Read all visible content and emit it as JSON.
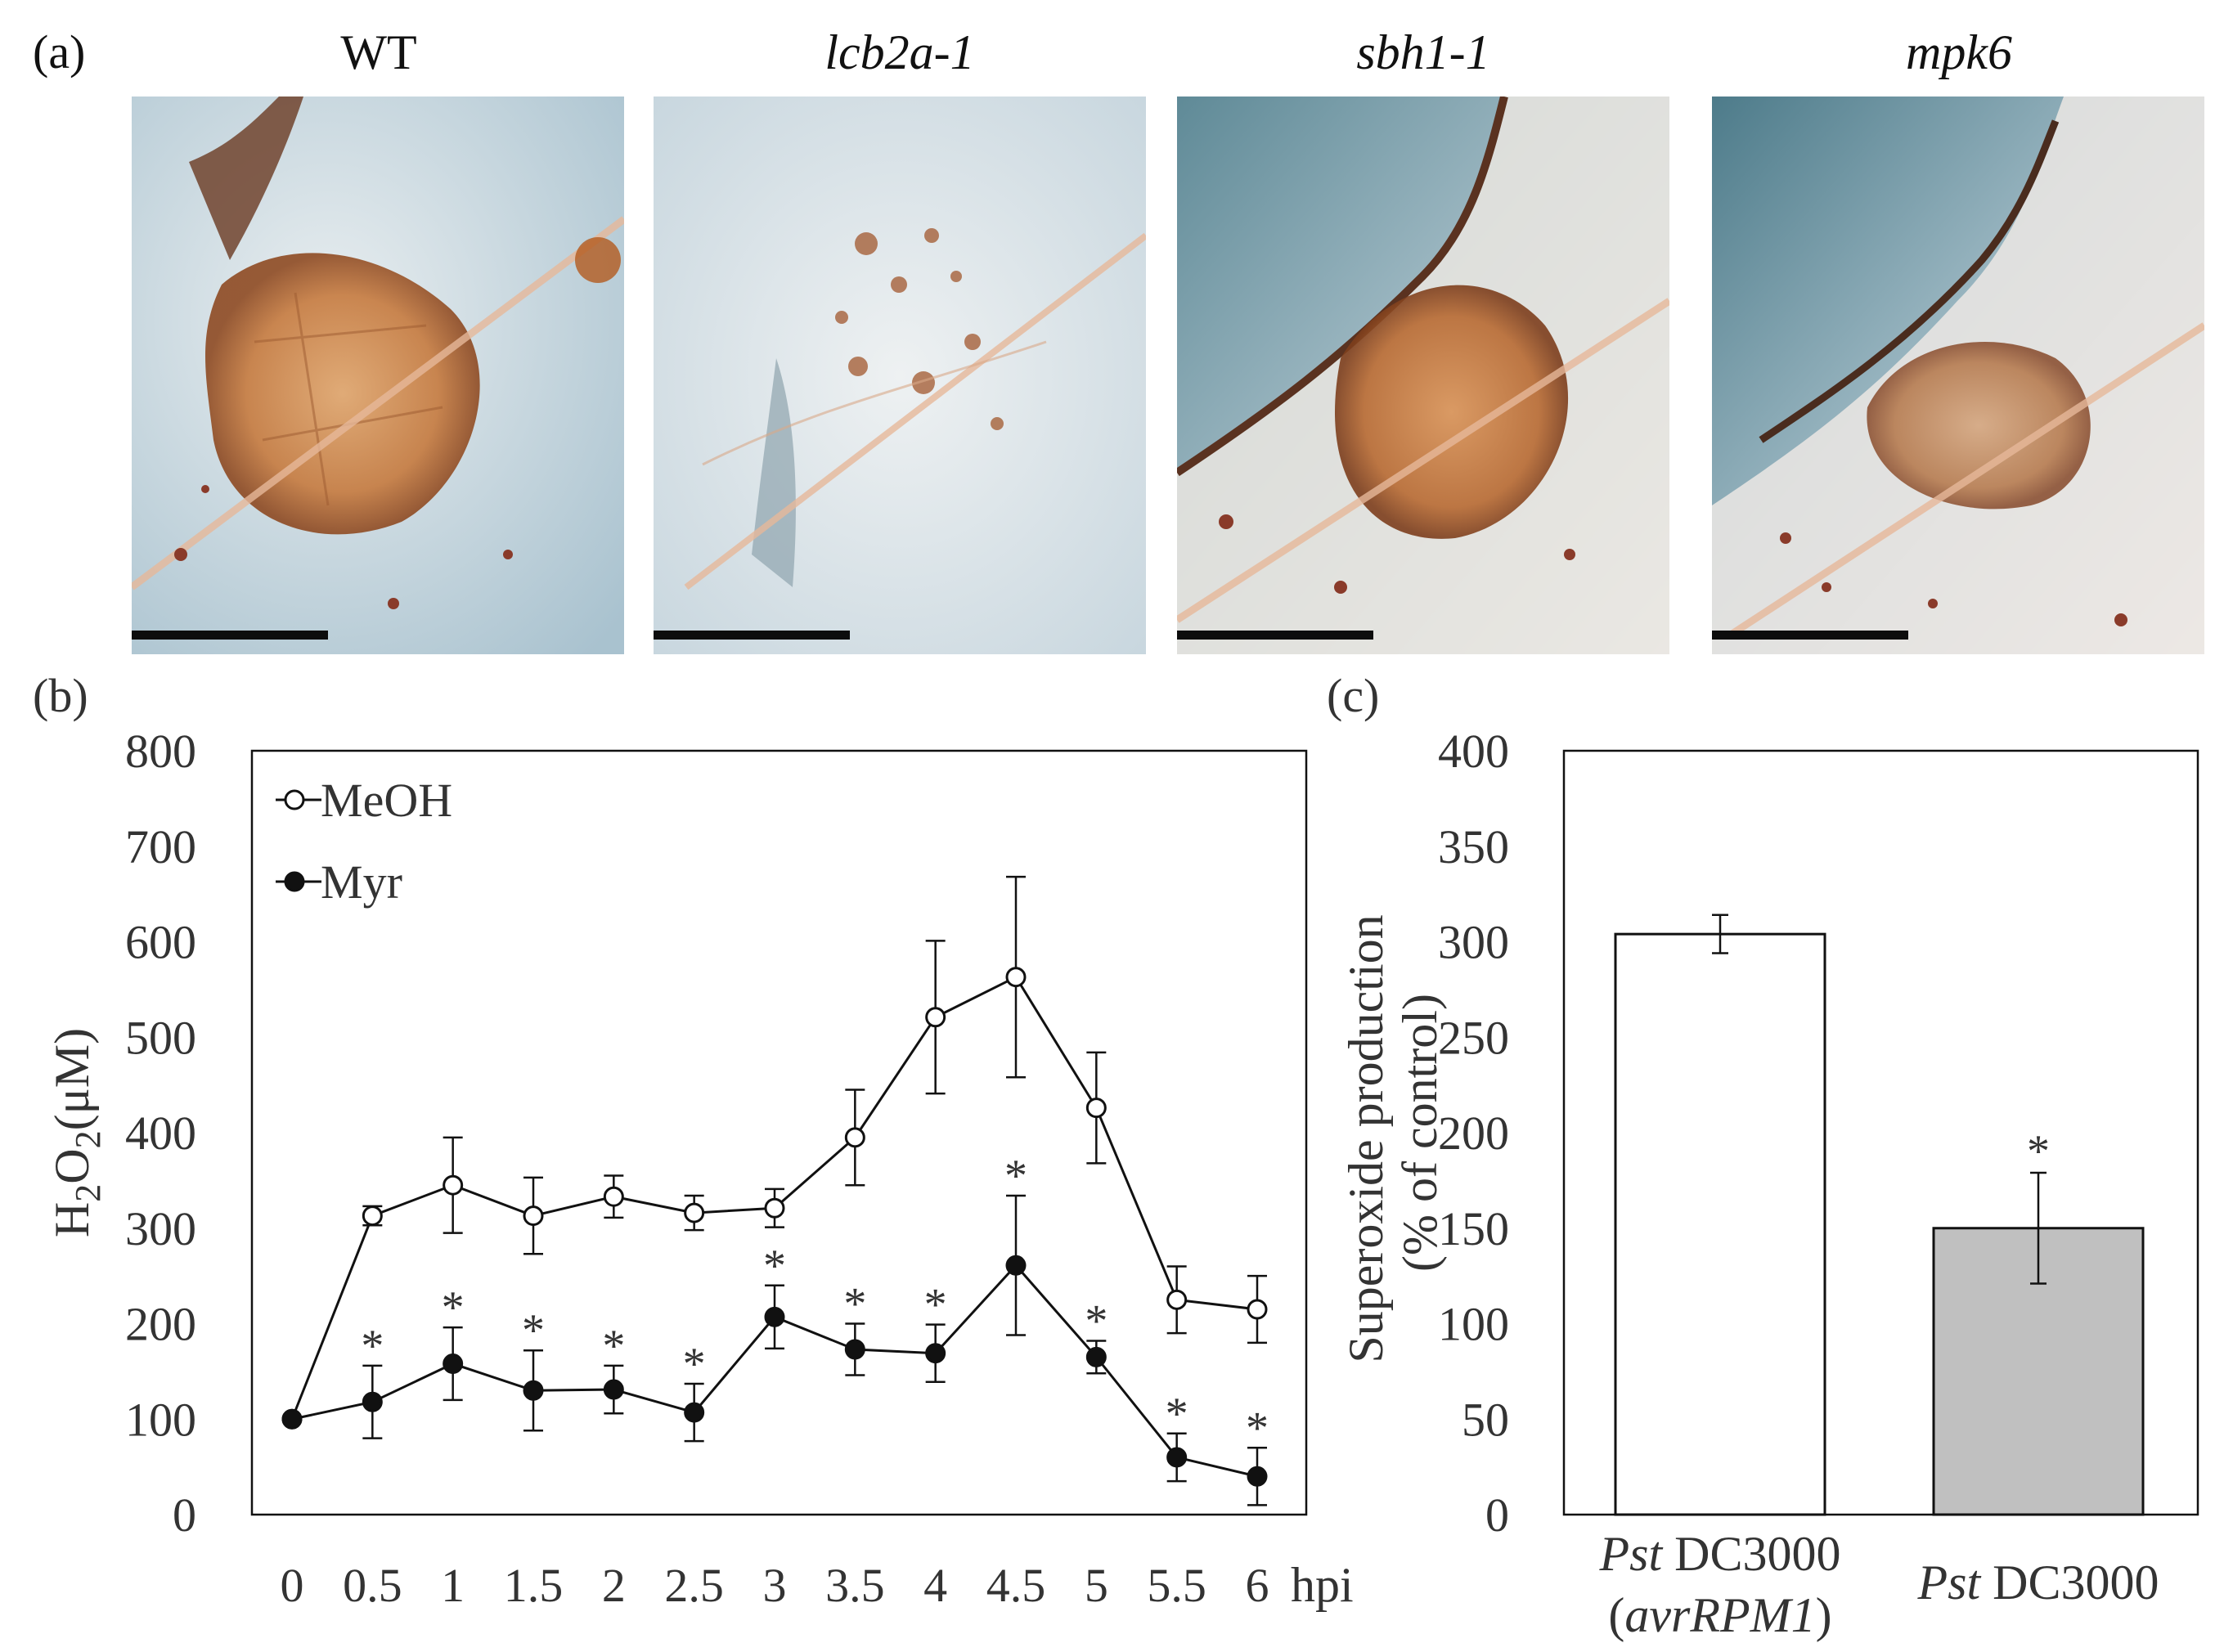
{
  "panel_a": {
    "label": "(a)",
    "photos": [
      {
        "title": "WT",
        "italic": false
      },
      {
        "title": "lcb2a-1",
        "italic": true
      },
      {
        "title": "sbh1-1",
        "italic": true
      },
      {
        "title": "mpk6",
        "italic": true
      }
    ]
  },
  "chart_data": [
    {
      "panel": "(b)",
      "type": "line",
      "xlabel": "hpi",
      "ylabel": "H2O2(μM)",
      "ylabel_parts": [
        "H",
        "2",
        "O",
        "2",
        "(μM)"
      ],
      "x": [
        0,
        0.5,
        1,
        1.5,
        2,
        2.5,
        3,
        3.5,
        4,
        4.5,
        5,
        5.5,
        6
      ],
      "x_tick_labels": [
        "0",
        "0.5",
        "1",
        "1.5",
        "2",
        "2.5",
        "3",
        "3.5",
        "4",
        "4.5",
        "5",
        "5.5",
        "6"
      ],
      "ylim": [
        0,
        800
      ],
      "y_ticks": [
        0,
        100,
        200,
        300,
        400,
        500,
        600,
        700,
        800
      ],
      "legend_position": "top-left",
      "series": [
        {
          "name": "MeOH",
          "marker": "open-circle",
          "values": [
            100,
            313,
            345,
            313,
            333,
            316,
            321,
            395,
            521,
            563,
            426,
            225,
            215
          ],
          "errors": [
            0,
            10,
            50,
            40,
            22,
            18,
            20,
            50,
            80,
            105,
            58,
            35,
            35
          ]
        },
        {
          "name": "Myr",
          "marker": "filled-circle",
          "values": [
            100,
            118,
            158,
            130,
            131,
            107,
            207,
            173,
            169,
            261,
            165,
            60,
            40
          ],
          "errors": [
            0,
            38,
            38,
            42,
            25,
            30,
            33,
            27,
            30,
            73,
            17,
            25,
            30
          ]
        }
      ],
      "significance_marker": "*",
      "significant_x": [
        0.5,
        1,
        1.5,
        2,
        2.5,
        3,
        3.5,
        4,
        4.5,
        5,
        5.5,
        6
      ]
    },
    {
      "panel": "(c)",
      "type": "bar",
      "ylabel_lines": [
        "Superoxide production",
        "(% of control)"
      ],
      "ylim": [
        0,
        400
      ],
      "y_ticks": [
        0,
        50,
        100,
        150,
        200,
        250,
        300,
        350,
        400
      ],
      "categories": [
        {
          "italic": "Pst",
          "rest": " DC3000",
          "line2": "(avrRPM1)"
        },
        {
          "italic": "Pst",
          "rest": " DC3000",
          "line2": ""
        }
      ],
      "values": [
        304,
        150
      ],
      "errors": [
        10,
        29
      ],
      "colors": [
        "#ffffff",
        "#c0c0c0"
      ],
      "significance": [
        "",
        "*"
      ]
    }
  ]
}
